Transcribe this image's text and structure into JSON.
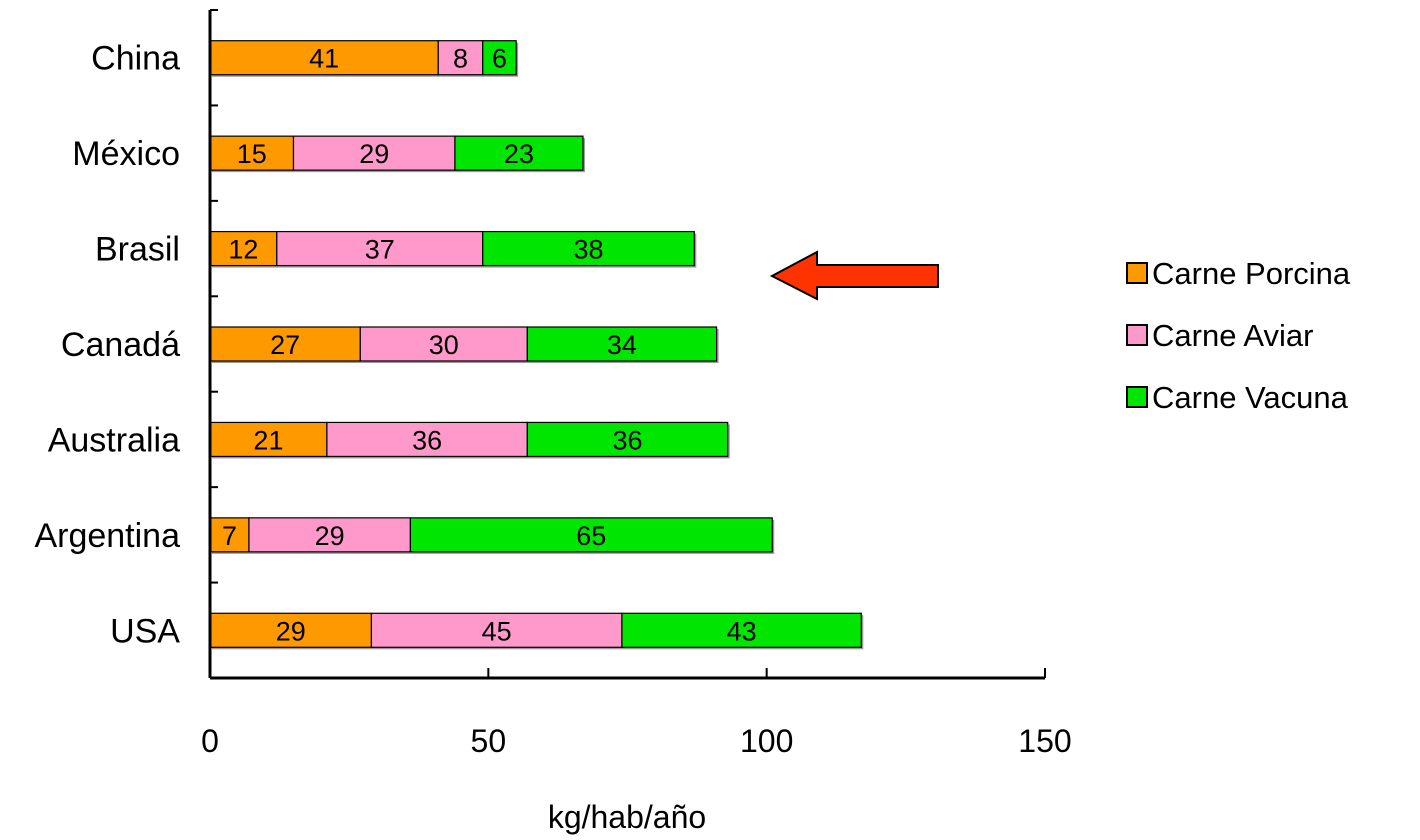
{
  "chart_data": {
    "type": "bar",
    "orientation": "horizontal",
    "stacked": true,
    "categories": [
      "China",
      "México",
      "Brasil",
      "Canadá",
      "Australia",
      "Argentina",
      "USA"
    ],
    "series": [
      {
        "name": "Carne Porcina",
        "color": "#FF9900",
        "values": [
          41,
          15,
          12,
          27,
          21,
          7,
          29
        ]
      },
      {
        "name": "Carne Aviar",
        "color": "#FF99CC",
        "values": [
          8,
          29,
          37,
          30,
          36,
          29,
          45
        ]
      },
      {
        "name": "Carne Vacuna",
        "color": "#00E600",
        "values": [
          6,
          23,
          38,
          34,
          36,
          65,
          43
        ]
      }
    ],
    "xlabel": "kg/hab/año",
    "xticks": [
      "0",
      "50",
      "100",
      "150"
    ],
    "xlim": [
      0,
      150
    ],
    "legend": "right",
    "annotation": {
      "type": "arrow",
      "color": "#FF3300",
      "target": "Brasil"
    }
  }
}
